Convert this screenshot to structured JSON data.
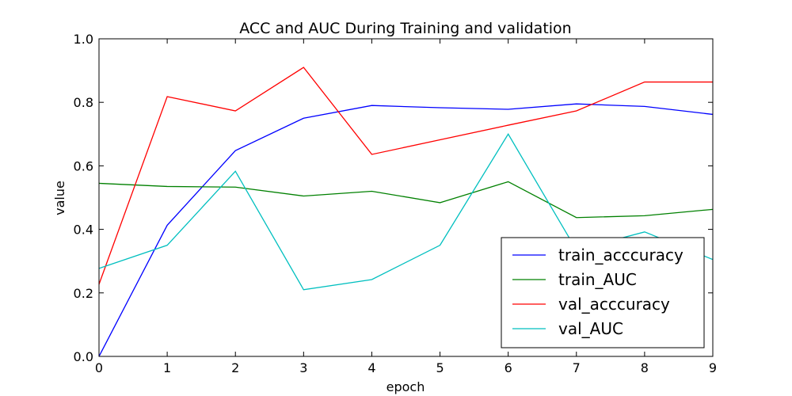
{
  "chart_data": {
    "type": "line",
    "title": "ACC and AUC During Training and validation",
    "xlabel": "epoch",
    "ylabel": "value",
    "xlim": [
      0,
      9
    ],
    "ylim": [
      0.0,
      1.0
    ],
    "xticks": [
      "0",
      "1",
      "2",
      "3",
      "4",
      "5",
      "6",
      "7",
      "8",
      "9"
    ],
    "yticks": [
      "0.0",
      "0.2",
      "0.4",
      "0.6",
      "0.8",
      "1.0"
    ],
    "grid": false,
    "legend_position": "lower-right",
    "x": [
      0,
      1,
      2,
      3,
      4,
      5,
      6,
      7,
      8,
      9
    ],
    "series": [
      {
        "name": "train_acccuracy",
        "color": "#0000ff",
        "values": [
          0.0,
          0.413,
          0.648,
          0.75,
          0.79,
          0.783,
          0.778,
          0.795,
          0.787,
          0.762
        ]
      },
      {
        "name": "train_AUC",
        "color": "#008000",
        "values": [
          0.545,
          0.535,
          0.533,
          0.505,
          0.52,
          0.484,
          0.55,
          0.437,
          0.443,
          0.463
        ]
      },
      {
        "name": "val_acccuracy",
        "color": "#ff0000",
        "values": [
          0.227,
          0.818,
          0.773,
          0.91,
          0.636,
          0.682,
          0.728,
          0.773,
          0.864,
          0.864
        ]
      },
      {
        "name": "val_AUC",
        "color": "#00bfbf",
        "values": [
          0.277,
          0.35,
          0.583,
          0.21,
          0.242,
          0.35,
          0.7,
          0.335,
          0.392,
          0.305
        ]
      }
    ]
  }
}
